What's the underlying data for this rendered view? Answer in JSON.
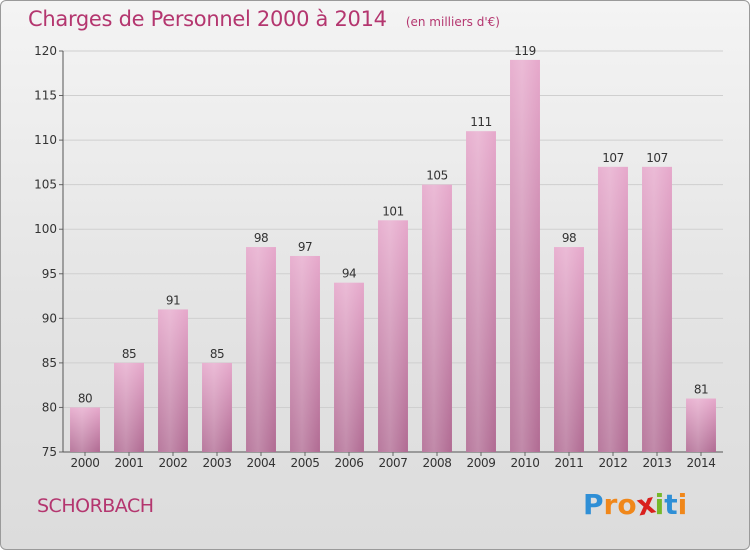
{
  "header": {
    "title": "Charges de Personnel 2000 à 2014",
    "subtitle": "(en milliers d'€)"
  },
  "footer": {
    "commune": "SCHORBACH",
    "logo_text": "Proxiti"
  },
  "colors": {
    "title": "#b4366f",
    "bar_top": "#e6a8cb",
    "bar_bottom": "#b06a92",
    "logo": [
      "#2f8fd6",
      "#f0871a",
      "#f0871a",
      "#d9201e",
      "#76b82a",
      "#2f8fd6",
      "#f0871a"
    ]
  },
  "chart_data": {
    "type": "bar",
    "title": "Charges de Personnel 2000 à 2014",
    "subtitle": "(en milliers d'€)",
    "categories": [
      "2000",
      "2001",
      "2002",
      "2003",
      "2004",
      "2005",
      "2006",
      "2007",
      "2008",
      "2009",
      "2010",
      "2011",
      "2012",
      "2013",
      "2014"
    ],
    "values": [
      80,
      85,
      91,
      85,
      98,
      97,
      94,
      101,
      105,
      111,
      119,
      98,
      107,
      107,
      81
    ],
    "ylim": [
      75,
      120
    ],
    "yticks": [
      75,
      80,
      85,
      90,
      95,
      100,
      105,
      110,
      115,
      120
    ],
    "grid": true,
    "data_labels": true
  }
}
